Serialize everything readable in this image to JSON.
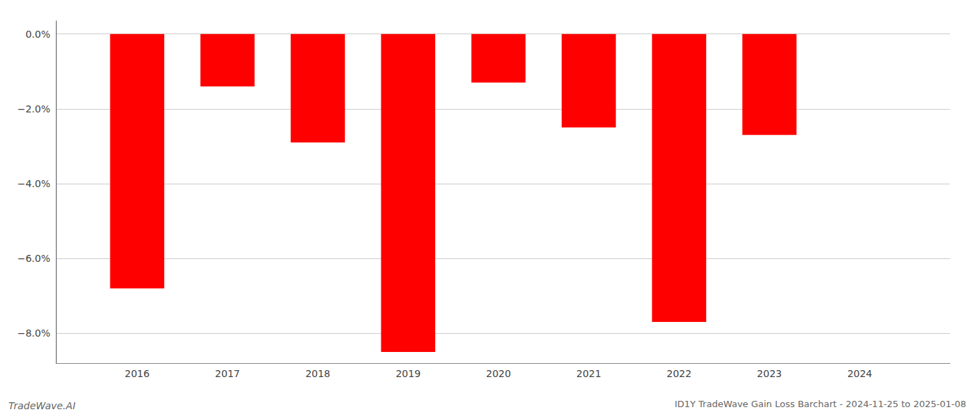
{
  "chart_data": {
    "type": "bar",
    "title": "ID1Y TradeWave Gain Loss Barchart - 2024-11-25 to 2025-01-08",
    "annotations": [
      "TradeWave.AI"
    ],
    "x": [
      2016,
      2017,
      2018,
      2019,
      2020,
      2021,
      2022,
      2023,
      2024
    ],
    "values": [
      -6.8,
      -1.4,
      -2.9,
      -8.5,
      -1.3,
      -2.5,
      -7.7,
      -2.7,
      0.0
    ],
    "color": "#ff0000",
    "xlim": [
      2015.1,
      2025.0
    ],
    "xticks": [
      2016,
      2017,
      2018,
      2019,
      2020,
      2021,
      2022,
      2023,
      2024
    ],
    "ylim": [
      -8.8,
      0.35
    ],
    "yticks": [
      {
        "value": 0.0,
        "label": "0.0%"
      },
      {
        "value": -2.0,
        "label": "−2.0%"
      },
      {
        "value": -4.0,
        "label": "−4.0%"
      },
      {
        "value": -6.0,
        "label": "−6.0%"
      },
      {
        "value": -8.0,
        "label": "−8.0%"
      }
    ],
    "grid": true
  }
}
